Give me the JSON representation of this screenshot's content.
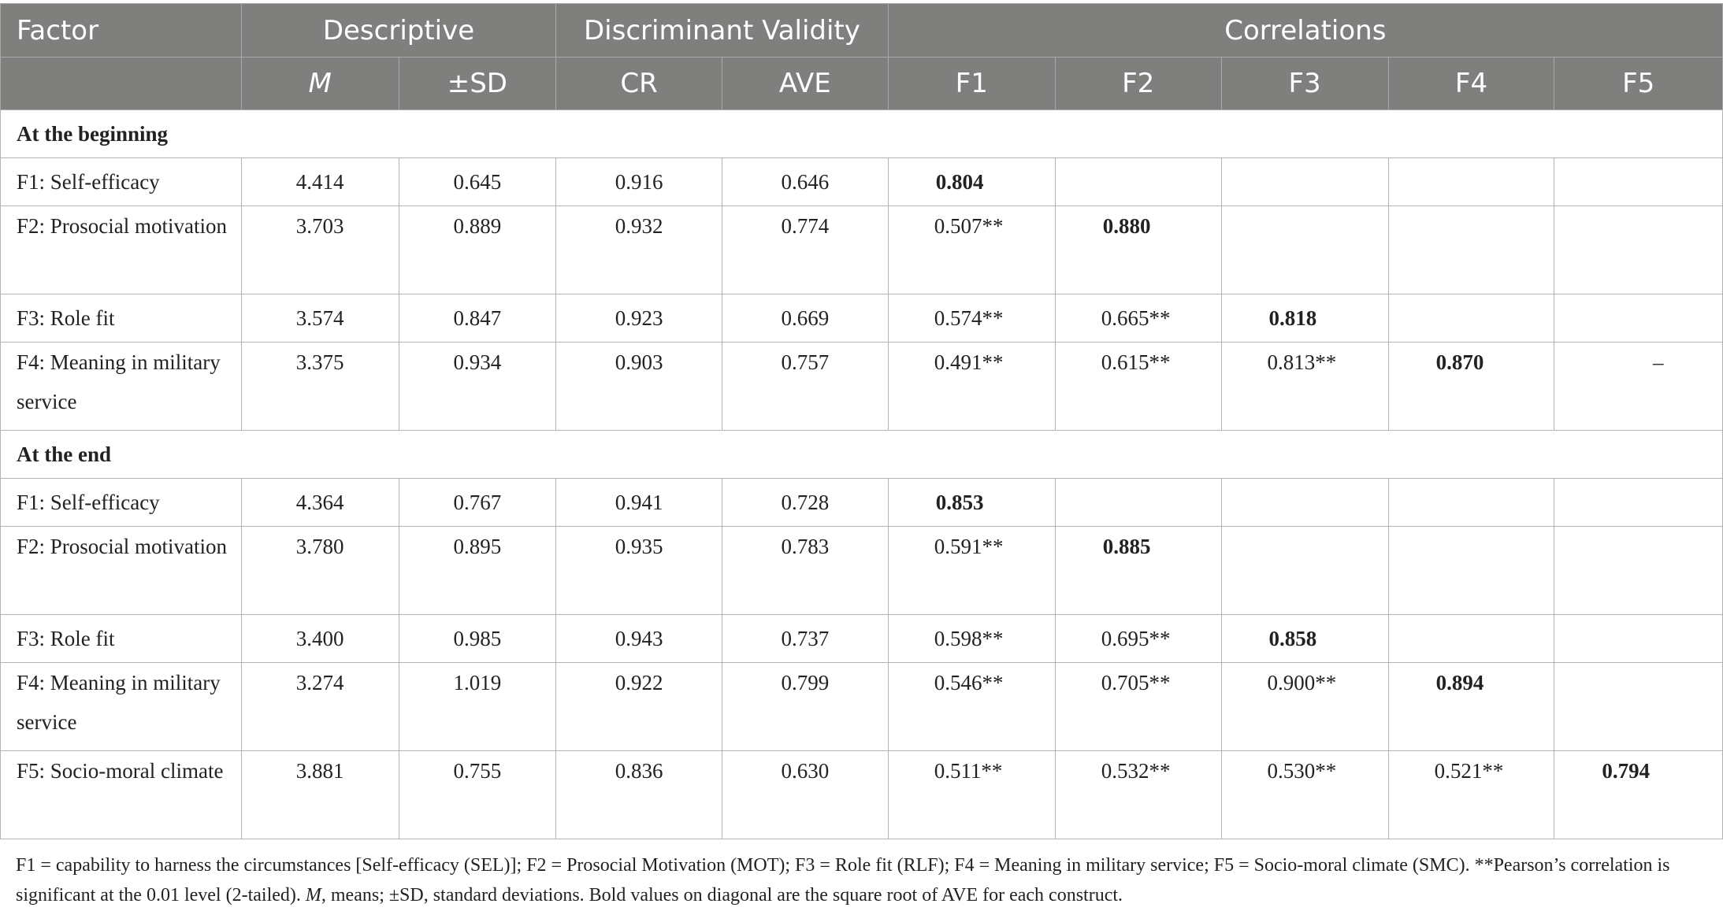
{
  "header": {
    "factor": "Factor",
    "groups": {
      "descriptive": "Descriptive",
      "discriminant": "Discriminant Validity",
      "correlations": "Correlations"
    },
    "cols": {
      "m": "M",
      "sd": "±SD",
      "cr": "CR",
      "ave": "AVE",
      "f1": "F1",
      "f2": "F2",
      "f3": "F3",
      "f4": "F4",
      "f5": "F5"
    }
  },
  "sections": {
    "beginning": {
      "label": "At the beginning",
      "rows": [
        {
          "factor": "F1: Self-efficacy",
          "m": "4.414",
          "sd": "0.645",
          "cr": "0.916",
          "ave": "0.646",
          "f1": "0.804",
          "f2": "",
          "f3": "",
          "f4": "",
          "f5": ""
        },
        {
          "factor": "F2: Prosocial motivation",
          "m": "3.703",
          "sd": "0.889",
          "cr": "0.932",
          "ave": "0.774",
          "f1": "0.507**",
          "f2": "0.880",
          "f3": "",
          "f4": "",
          "f5": ""
        },
        {
          "factor": "F3: Role fit",
          "m": "3.574",
          "sd": "0.847",
          "cr": "0.923",
          "ave": "0.669",
          "f1": "0.574**",
          "f2": "0.665**",
          "f3": "0.818",
          "f4": "",
          "f5": ""
        },
        {
          "factor": "F4: Meaning in military service",
          "m": "3.375",
          "sd": "0.934",
          "cr": "0.903",
          "ave": "0.757",
          "f1": "0.491**",
          "f2": "0.615**",
          "f3": "0.813**",
          "f4": "0.870",
          "f5": "–"
        }
      ]
    },
    "end": {
      "label": "At the end",
      "rows": [
        {
          "factor": "F1: Self-efficacy",
          "m": "4.364",
          "sd": "0.767",
          "cr": "0.941",
          "ave": "0.728",
          "f1": "0.853",
          "f2": "",
          "f3": "",
          "f4": "",
          "f5": ""
        },
        {
          "factor": "F2: Prosocial motivation",
          "m": "3.780",
          "sd": "0.895",
          "cr": "0.935",
          "ave": "0.783",
          "f1": "0.591**",
          "f2": "0.885",
          "f3": "",
          "f4": "",
          "f5": ""
        },
        {
          "factor": "F3: Role fit",
          "m": "3.400",
          "sd": "0.985",
          "cr": "0.943",
          "ave": "0.737",
          "f1": "0.598**",
          "f2": "0.695**",
          "f3": "0.858",
          "f4": "",
          "f5": ""
        },
        {
          "factor": "F4: Meaning in military service",
          "m": "3.274",
          "sd": "1.019",
          "cr": "0.922",
          "ave": "0.799",
          "f1": "0.546**",
          "f2": "0.705**",
          "f3": "0.900**",
          "f4": "0.894",
          "f5": ""
        },
        {
          "factor": "F5: Socio-moral climate",
          "m": "3.881",
          "sd": "0.755",
          "cr": "0.836",
          "ave": "0.630",
          "f1": "0.511**",
          "f2": "0.532**",
          "f3": "0.530**",
          "f4": "0.521**",
          "f5": "0.794"
        }
      ]
    }
  },
  "note": {
    "part1": "F1 = capability to harness the circumstances [Self-efficacy (SEL)]; F2 = Prosocial Motivation (MOT); F3 = Role fit (RLF); F4 = Meaning in military service; F5 = Socio-moral climate (SMC). **Pearson’s correlation is significant at the 0.01 level (2-tailed). ",
    "m": "M",
    "part2": ", means; ±SD, standard deviations. Bold values on diagonal are the square root of AVE for each construct."
  }
}
